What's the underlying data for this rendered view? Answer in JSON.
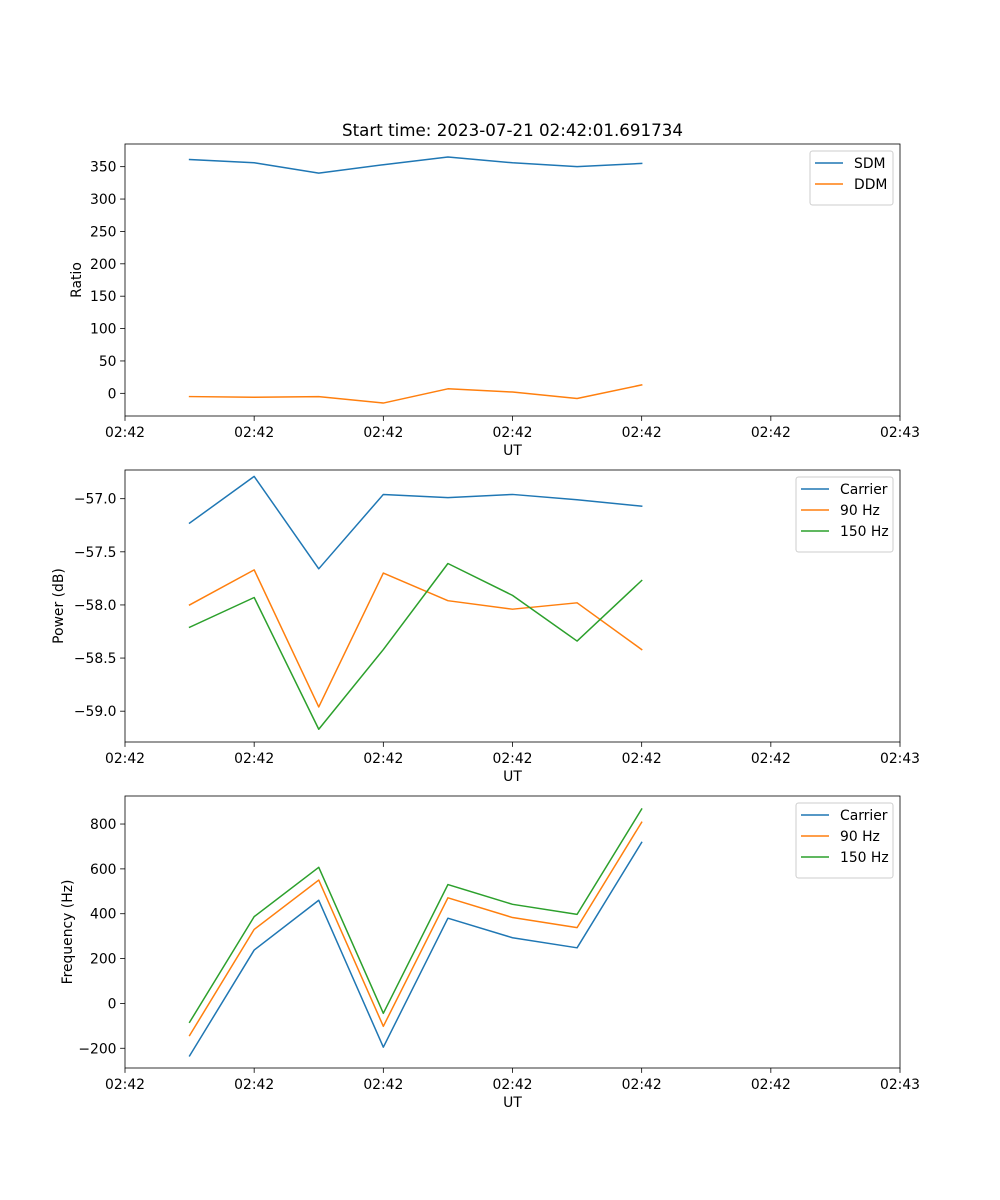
{
  "chart_data": [
    {
      "type": "line",
      "title": "Start time: 2023-07-21 02:42:01.691734",
      "xlabel": "UT",
      "ylabel": "Ratio",
      "xlim": [
        0,
        12
      ],
      "ylim": [
        -35,
        385
      ],
      "x": [
        1,
        2,
        3,
        4,
        5,
        6,
        7,
        8
      ],
      "xticks": [
        0,
        2,
        4,
        6,
        8,
        10,
        12
      ],
      "xtick_labels": [
        "02:42",
        "02:42",
        "02:42",
        "02:42",
        "02:42",
        "02:42",
        "02:43"
      ],
      "yticks": [
        0,
        50,
        100,
        150,
        200,
        250,
        300,
        350
      ],
      "ytick_labels": [
        "0",
        "50",
        "100",
        "150",
        "200",
        "250",
        "300",
        "350"
      ],
      "legend_position": "top-right",
      "series": [
        {
          "name": "SDM",
          "color": "#1f77b4",
          "values": [
            361,
            356,
            340,
            353,
            365,
            356,
            350,
            355
          ]
        },
        {
          "name": "DDM",
          "color": "#ff7f0e",
          "values": [
            -5,
            -6,
            -5,
            -15,
            7,
            2,
            -8,
            13
          ]
        }
      ]
    },
    {
      "type": "line",
      "title": "",
      "xlabel": "UT",
      "ylabel": "Power (dB)",
      "xlim": [
        0,
        12
      ],
      "ylim": [
        -59.29,
        -56.73
      ],
      "x": [
        1,
        2,
        3,
        4,
        5,
        6,
        7,
        8
      ],
      "xticks": [
        0,
        2,
        4,
        6,
        8,
        10,
        12
      ],
      "xtick_labels": [
        "02:42",
        "02:42",
        "02:42",
        "02:42",
        "02:42",
        "02:42",
        "02:43"
      ],
      "yticks": [
        -59.0,
        -58.5,
        -58.0,
        -57.5,
        -57.0
      ],
      "ytick_labels": [
        "−59.0",
        "−58.5",
        "−58.0",
        "−57.5",
        "−57.0"
      ],
      "legend_position": "top-right",
      "series": [
        {
          "name": "Carrier",
          "color": "#1f77b4",
          "values": [
            -57.23,
            -56.79,
            -57.66,
            -56.96,
            -56.99,
            -56.96,
            -57.01,
            -57.07
          ]
        },
        {
          "name": "90 Hz",
          "color": "#ff7f0e",
          "values": [
            -58.0,
            -57.67,
            -58.96,
            -57.7,
            -57.96,
            -58.04,
            -57.98,
            -58.42
          ]
        },
        {
          "name": "150 Hz",
          "color": "#2ca02c",
          "values": [
            -58.21,
            -57.93,
            -59.17,
            -58.42,
            -57.61,
            -57.91,
            -58.34,
            -57.77
          ]
        }
      ]
    },
    {
      "type": "line",
      "title": "",
      "xlabel": "UT",
      "ylabel": "Frequency (Hz)",
      "xlim": [
        0,
        12
      ],
      "ylim": [
        -288,
        925
      ],
      "x": [
        1,
        2,
        3,
        4,
        5,
        6,
        7,
        8
      ],
      "xticks": [
        0,
        2,
        4,
        6,
        8,
        10,
        12
      ],
      "xtick_labels": [
        "02:42",
        "02:42",
        "02:42",
        "02:42",
        "02:42",
        "02:42",
        "02:43"
      ],
      "yticks": [
        -200,
        0,
        200,
        400,
        600,
        800
      ],
      "ytick_labels": [
        "−200",
        "0",
        "200",
        "400",
        "600",
        "800"
      ],
      "legend_position": "top-right",
      "series": [
        {
          "name": "Carrier",
          "color": "#1f77b4",
          "values": [
            -234,
            238,
            460,
            -195,
            380,
            293,
            248,
            718
          ]
        },
        {
          "name": "90 Hz",
          "color": "#ff7f0e",
          "values": [
            -143,
            330,
            550,
            -102,
            471,
            383,
            338,
            808
          ]
        },
        {
          "name": "150 Hz",
          "color": "#2ca02c",
          "values": [
            -84,
            387,
            607,
            -44,
            530,
            442,
            397,
            867
          ]
        }
      ]
    }
  ]
}
